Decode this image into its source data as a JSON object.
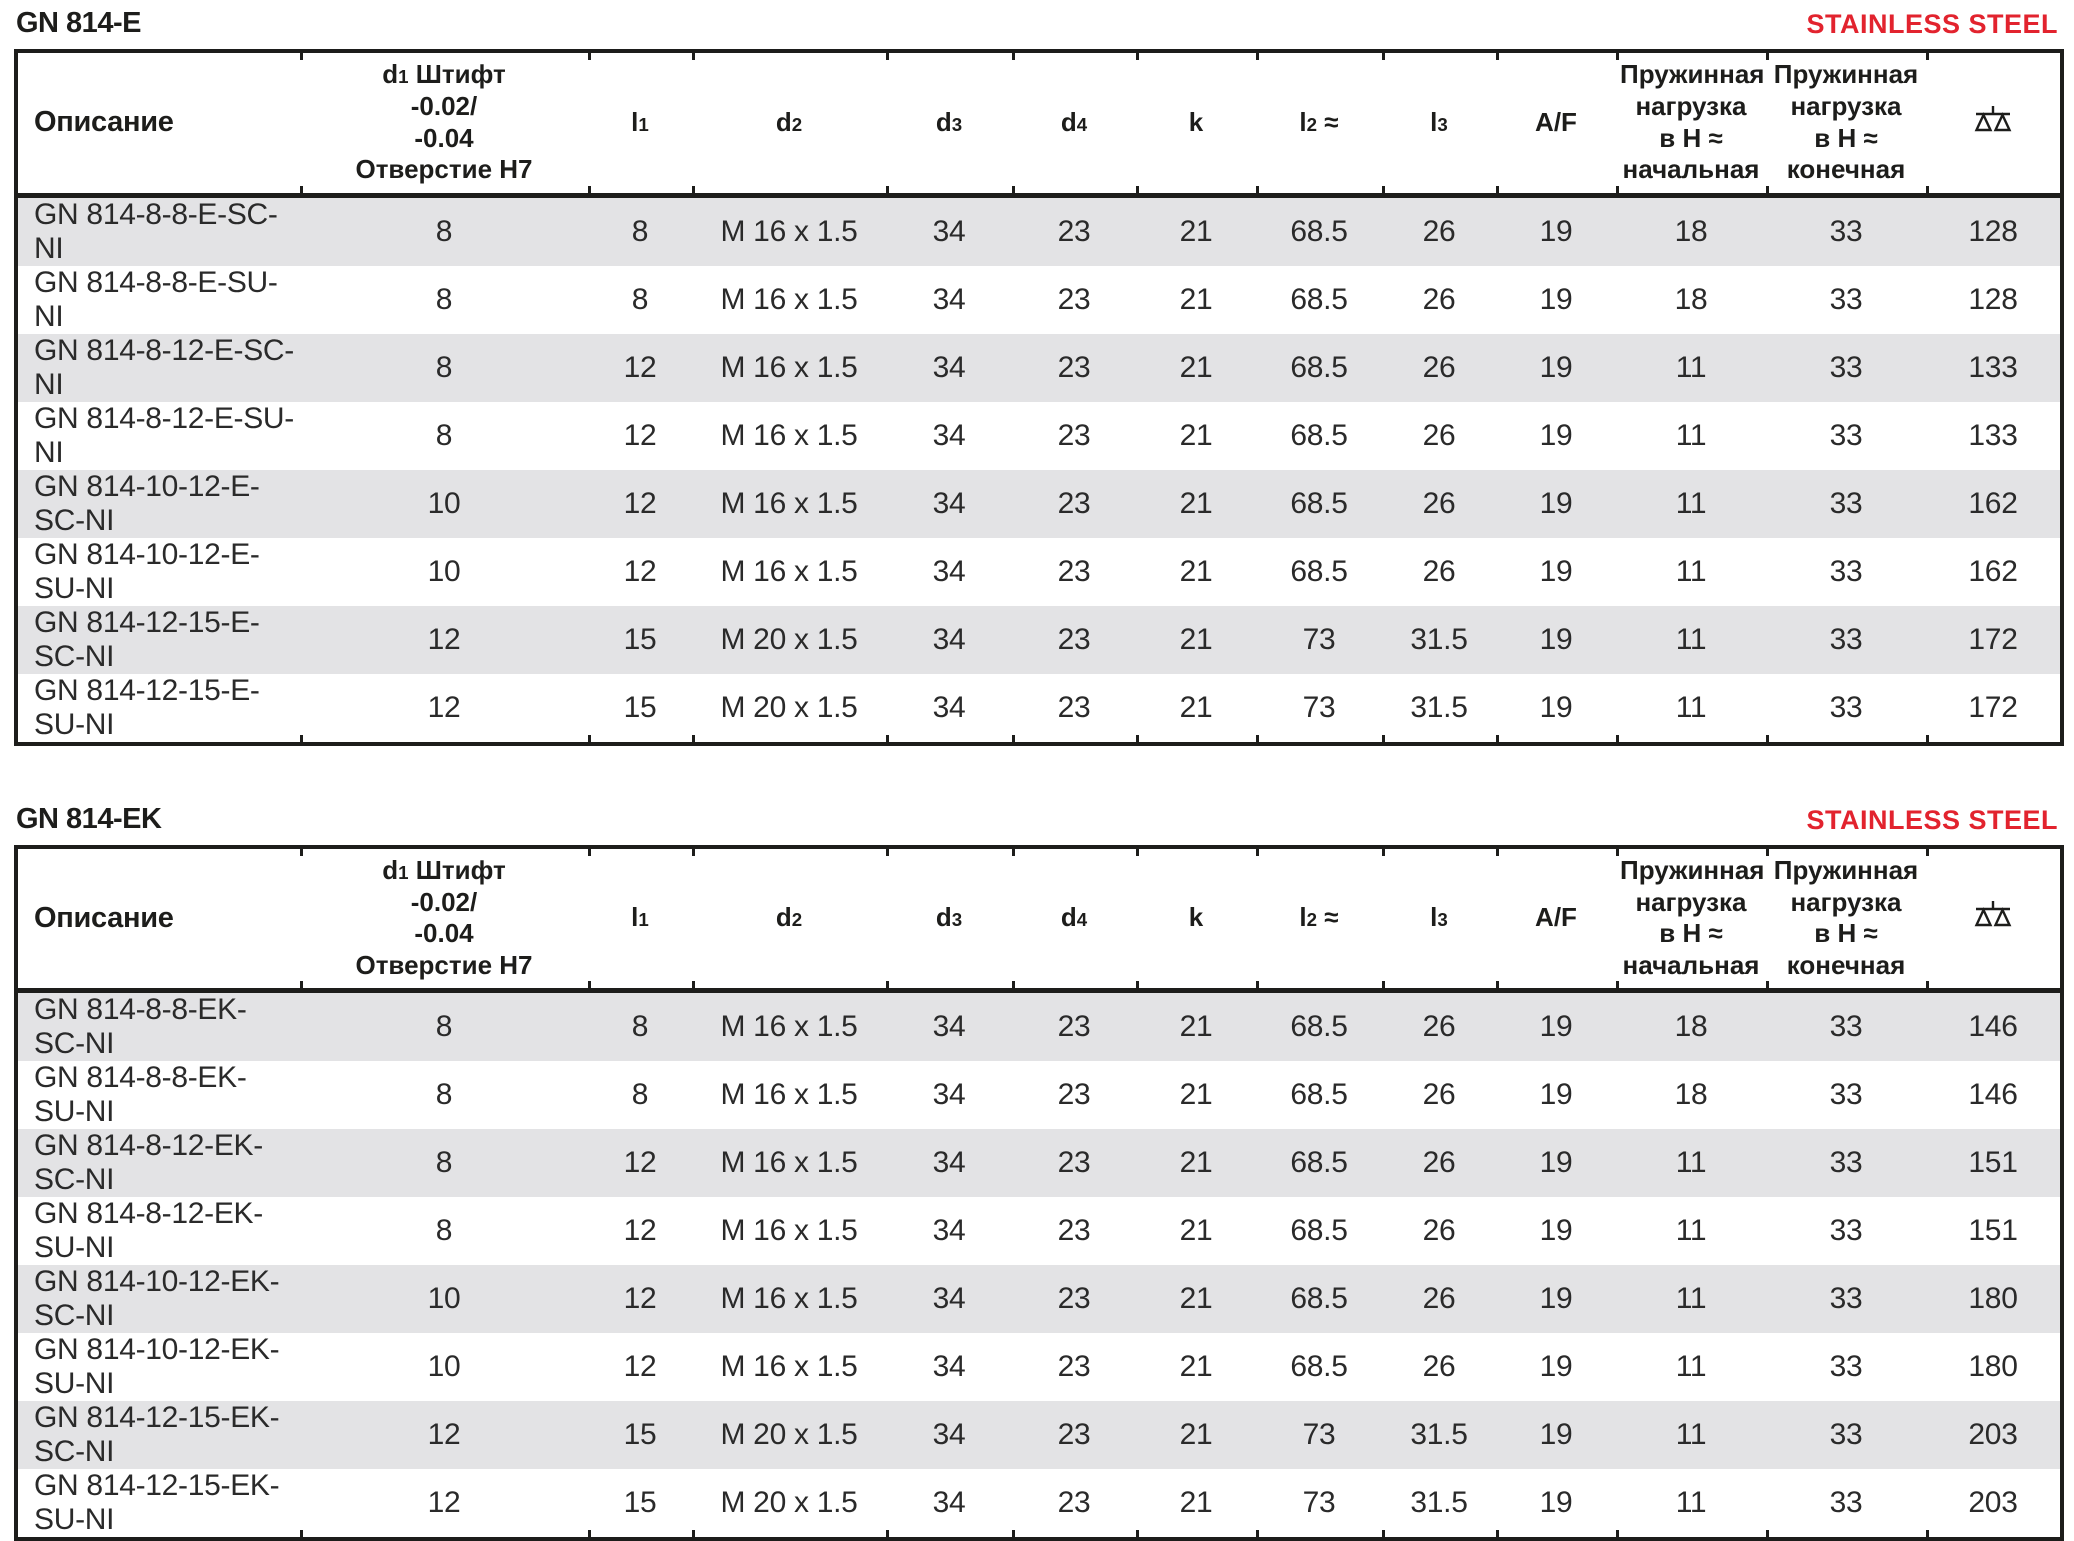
{
  "accent_red": "#e2232e",
  "columns": [
    {
      "id": "description",
      "label": "Описание"
    },
    {
      "id": "d1",
      "sym": "d",
      "sub": "1",
      "tail": " Штифт",
      "line2": "-0.02/",
      "line3": "-0.04",
      "line4": "Отверстие H7"
    },
    {
      "id": "l1",
      "sym": "l",
      "sub": "1"
    },
    {
      "id": "d2",
      "sym": "d",
      "sub": "2"
    },
    {
      "id": "d3",
      "sym": "d",
      "sub": "3"
    },
    {
      "id": "d4",
      "sym": "d",
      "sub": "4"
    },
    {
      "id": "k",
      "sym": "k"
    },
    {
      "id": "l2",
      "sym": "l",
      "sub": "2",
      "tail": " ≈"
    },
    {
      "id": "l3",
      "sym": "l",
      "sub": "3"
    },
    {
      "id": "af",
      "label": "A/F"
    },
    {
      "id": "spring-load-initial",
      "line1": "Пружинная",
      "line2": "нагрузка",
      "line3": "в Н ≈",
      "line4": "начальная"
    },
    {
      "id": "spring-load-final",
      "line1": "Пружинная",
      "line2": "нагрузка",
      "line3": "в Н ≈",
      "line4": "конечная"
    },
    {
      "id": "weight",
      "icon": "weight-scale-icon"
    }
  ],
  "tables": [
    {
      "title": "GN 814-E",
      "badge": "STAINLESS STEEL",
      "rows": [
        [
          "GN 814-8-8-E-SC-NI",
          "8",
          "8",
          "M 16 x 1.5",
          "34",
          "23",
          "21",
          "68.5",
          "26",
          "19",
          "18",
          "33",
          "128"
        ],
        [
          "GN 814-8-8-E-SU-NI",
          "8",
          "8",
          "M 16 x 1.5",
          "34",
          "23",
          "21",
          "68.5",
          "26",
          "19",
          "18",
          "33",
          "128"
        ],
        [
          "GN 814-8-12-E-SC-NI",
          "8",
          "12",
          "M 16 x 1.5",
          "34",
          "23",
          "21",
          "68.5",
          "26",
          "19",
          "11",
          "33",
          "133"
        ],
        [
          "GN 814-8-12-E-SU-NI",
          "8",
          "12",
          "M 16 x 1.5",
          "34",
          "23",
          "21",
          "68.5",
          "26",
          "19",
          "11",
          "33",
          "133"
        ],
        [
          "GN 814-10-12-E-SC-NI",
          "10",
          "12",
          "M 16 x 1.5",
          "34",
          "23",
          "21",
          "68.5",
          "26",
          "19",
          "11",
          "33",
          "162"
        ],
        [
          "GN 814-10-12-E-SU-NI",
          "10",
          "12",
          "M 16 x 1.5",
          "34",
          "23",
          "21",
          "68.5",
          "26",
          "19",
          "11",
          "33",
          "162"
        ],
        [
          "GN 814-12-15-E-SC-NI",
          "12",
          "15",
          "M 20 x 1.5",
          "34",
          "23",
          "21",
          "73",
          "31.5",
          "19",
          "11",
          "33",
          "172"
        ],
        [
          "GN 814-12-15-E-SU-NI",
          "12",
          "15",
          "M 20 x 1.5",
          "34",
          "23",
          "21",
          "73",
          "31.5",
          "19",
          "11",
          "33",
          "172"
        ]
      ]
    },
    {
      "title": "GN 814-EK",
      "badge": "STAINLESS STEEL",
      "rows": [
        [
          "GN 814-8-8-EK-SC-NI",
          "8",
          "8",
          "M 16 x 1.5",
          "34",
          "23",
          "21",
          "68.5",
          "26",
          "19",
          "18",
          "33",
          "146"
        ],
        [
          "GN 814-8-8-EK-SU-NI",
          "8",
          "8",
          "M 16 x 1.5",
          "34",
          "23",
          "21",
          "68.5",
          "26",
          "19",
          "18",
          "33",
          "146"
        ],
        [
          "GN 814-8-12-EK-SC-NI",
          "8",
          "12",
          "M 16 x 1.5",
          "34",
          "23",
          "21",
          "68.5",
          "26",
          "19",
          "11",
          "33",
          "151"
        ],
        [
          "GN 814-8-12-EK-SU-NI",
          "8",
          "12",
          "M 16 x 1.5",
          "34",
          "23",
          "21",
          "68.5",
          "26",
          "19",
          "11",
          "33",
          "151"
        ],
        [
          "GN 814-10-12-EK-SC-NI",
          "10",
          "12",
          "M 16 x 1.5",
          "34",
          "23",
          "21",
          "68.5",
          "26",
          "19",
          "11",
          "33",
          "180"
        ],
        [
          "GN 814-10-12-EK-SU-NI",
          "10",
          "12",
          "M 16 x 1.5",
          "34",
          "23",
          "21",
          "68.5",
          "26",
          "19",
          "11",
          "33",
          "180"
        ],
        [
          "GN 814-12-15-EK-SC-NI",
          "12",
          "15",
          "M 20 x 1.5",
          "34",
          "23",
          "21",
          "73",
          "31.5",
          "19",
          "11",
          "33",
          "203"
        ],
        [
          "GN 814-12-15-EK-SU-NI",
          "12",
          "15",
          "M 20 x 1.5",
          "34",
          "23",
          "21",
          "73",
          "31.5",
          "19",
          "11",
          "33",
          "203"
        ]
      ]
    }
  ]
}
